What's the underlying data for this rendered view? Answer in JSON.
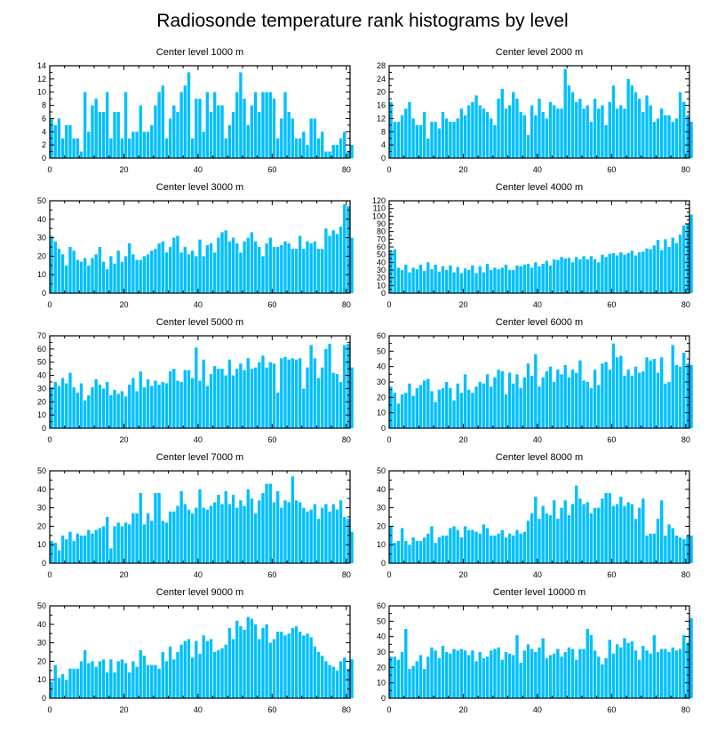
{
  "title": "Radiosonde temperature rank histograms by level",
  "colors": {
    "bar": "#00bfff",
    "bar_edge": "#ffffff",
    "axis": "#000000"
  },
  "chart_data": [
    {
      "type": "bar",
      "title": "Center level 1000 m",
      "xlim": [
        0,
        81
      ],
      "ylim": [
        0,
        14
      ],
      "xticks": [
        0,
        20,
        40,
        60,
        80
      ],
      "yticks": [
        0,
        2,
        4,
        6,
        8,
        10,
        12,
        14
      ],
      "values": [
        6,
        5,
        6,
        3,
        5,
        5,
        3,
        3,
        1,
        10,
        4,
        8,
        9,
        7,
        7,
        10,
        3,
        7,
        7,
        3,
        10,
        3,
        4,
        4,
        8,
        4,
        4,
        5,
        8,
        10,
        11,
        3,
        6,
        8,
        7,
        10,
        11,
        13,
        3,
        9,
        9,
        4,
        10,
        7,
        10,
        8,
        8,
        3,
        5,
        7,
        10,
        13,
        9,
        5,
        8,
        10,
        7,
        10,
        10,
        10,
        9,
        3,
        6,
        10,
        7,
        6,
        3,
        3,
        4,
        2,
        6,
        6,
        3,
        4,
        1,
        1,
        2,
        2,
        3,
        4,
        1,
        2
      ]
    },
    {
      "type": "bar",
      "title": "Center level 2000 m",
      "xlim": [
        0,
        81
      ],
      "ylim": [
        0,
        28
      ],
      "xticks": [
        0,
        20,
        40,
        60,
        80
      ],
      "yticks": [
        0,
        4,
        8,
        12,
        16,
        20,
        24,
        28
      ],
      "values": [
        17,
        11,
        11,
        13,
        15,
        17,
        12,
        10,
        10,
        14,
        6,
        11,
        11,
        9,
        14,
        12,
        11,
        11,
        12,
        15,
        13,
        16,
        17,
        19,
        16,
        15,
        14,
        12,
        10,
        18,
        21,
        15,
        16,
        20,
        18,
        14,
        13,
        7,
        16,
        13,
        18,
        14,
        12,
        17,
        16,
        15,
        15,
        27,
        22,
        20,
        17,
        18,
        15,
        16,
        11,
        18,
        15,
        16,
        10,
        17,
        22,
        15,
        16,
        15,
        24,
        22,
        20,
        18,
        14,
        19,
        16,
        11,
        12,
        15,
        13,
        13,
        11,
        12,
        20,
        17,
        13,
        11
      ]
    },
    {
      "type": "bar",
      "title": "Center level 3000 m",
      "xlim": [
        0,
        81
      ],
      "ylim": [
        0,
        50
      ],
      "xticks": [
        0,
        20,
        40,
        60,
        80
      ],
      "yticks": [
        0,
        10,
        20,
        30,
        40,
        50
      ],
      "values": [
        31,
        28,
        24,
        21,
        15,
        25,
        23,
        18,
        17,
        19,
        15,
        19,
        21,
        25,
        17,
        13,
        20,
        16,
        23,
        17,
        20,
        27,
        21,
        18,
        18,
        20,
        21,
        23,
        24,
        27,
        28,
        22,
        25,
        30,
        31,
        22,
        25,
        21,
        23,
        20,
        29,
        20,
        26,
        27,
        22,
        30,
        33,
        34,
        28,
        30,
        27,
        22,
        28,
        30,
        33,
        28,
        25,
        20,
        27,
        30,
        25,
        25,
        26,
        28,
        27,
        24,
        24,
        31,
        24,
        28,
        27,
        28,
        24,
        24,
        35,
        31,
        34,
        32,
        36,
        48,
        47,
        30
      ]
    },
    {
      "type": "bar",
      "title": "Center level 4000 m",
      "xlim": [
        0,
        81
      ],
      "ylim": [
        0,
        120
      ],
      "xticks": [
        0,
        20,
        40,
        60,
        80
      ],
      "yticks": [
        0,
        10,
        20,
        30,
        40,
        50,
        60,
        70,
        80,
        90,
        100,
        110,
        120
      ],
      "values": [
        55,
        57,
        33,
        30,
        37,
        27,
        33,
        31,
        37,
        29,
        40,
        31,
        37,
        28,
        35,
        30,
        36,
        27,
        34,
        26,
        32,
        30,
        36,
        26,
        35,
        27,
        38,
        30,
        33,
        31,
        33,
        37,
        30,
        30,
        36,
        35,
        37,
        38,
        33,
        40,
        35,
        38,
        42,
        36,
        44,
        43,
        47,
        45,
        46,
        40,
        47,
        44,
        48,
        44,
        48,
        44,
        40,
        50,
        47,
        51,
        52,
        49,
        53,
        50,
        52,
        55,
        49,
        53,
        54,
        58,
        57,
        62,
        69,
        56,
        70,
        60,
        72,
        65,
        76,
        88,
        90,
        102
      ]
    },
    {
      "type": "bar",
      "title": "Center level 5000 m",
      "xlim": [
        0,
        81
      ],
      "ylim": [
        0,
        70
      ],
      "xticks": [
        0,
        20,
        40,
        60,
        80
      ],
      "yticks": [
        0,
        10,
        20,
        30,
        40,
        50,
        60,
        70
      ],
      "values": [
        31,
        35,
        32,
        38,
        34,
        42,
        31,
        27,
        34,
        21,
        25,
        31,
        37,
        33,
        30,
        35,
        25,
        29,
        26,
        28,
        24,
        33,
        38,
        28,
        43,
        31,
        37,
        32,
        36,
        33,
        35,
        34,
        43,
        45,
        36,
        35,
        44,
        44,
        38,
        61,
        36,
        52,
        32,
        41,
        47,
        45,
        45,
        40,
        52,
        40,
        45,
        49,
        44,
        53,
        45,
        46,
        50,
        55,
        46,
        50,
        49,
        27,
        53,
        54,
        52,
        53,
        52,
        53,
        30,
        46,
        63,
        53,
        38,
        46,
        60,
        64,
        42,
        41,
        35,
        63,
        64,
        46
      ]
    },
    {
      "type": "bar",
      "title": "Center level 6000 m",
      "xlim": [
        0,
        81
      ],
      "ylim": [
        0,
        60
      ],
      "xticks": [
        0,
        20,
        40,
        60,
        80
      ],
      "yticks": [
        0,
        10,
        20,
        30,
        40,
        50,
        60
      ],
      "values": [
        27,
        23,
        16,
        22,
        23,
        29,
        21,
        26,
        28,
        31,
        32,
        24,
        17,
        25,
        26,
        30,
        26,
        18,
        29,
        23,
        35,
        25,
        23,
        27,
        30,
        29,
        35,
        27,
        33,
        38,
        37,
        22,
        36,
        29,
        35,
        26,
        33,
        42,
        34,
        48,
        27,
        33,
        37,
        40,
        30,
        38,
        35,
        41,
        33,
        38,
        36,
        44,
        31,
        30,
        26,
        38,
        28,
        42,
        43,
        38,
        55,
        46,
        47,
        34,
        38,
        34,
        40,
        36,
        37,
        46,
        44,
        45,
        36,
        46,
        29,
        30,
        54,
        41,
        40,
        49,
        42,
        41
      ]
    },
    {
      "type": "bar",
      "title": "Center level 7000 m",
      "xlim": [
        0,
        81
      ],
      "ylim": [
        0,
        50
      ],
      "xticks": [
        0,
        20,
        40,
        60,
        80
      ],
      "yticks": [
        0,
        10,
        20,
        30,
        40,
        50
      ],
      "values": [
        12,
        11,
        7,
        15,
        13,
        17,
        12,
        16,
        15,
        15,
        18,
        16,
        18,
        19,
        20,
        25,
        8,
        20,
        22,
        20,
        22,
        21,
        27,
        27,
        38,
        21,
        27,
        23,
        38,
        38,
        23,
        22,
        28,
        28,
        31,
        39,
        32,
        29,
        27,
        30,
        40,
        30,
        29,
        31,
        33,
        37,
        32,
        39,
        32,
        37,
        30,
        34,
        31,
        40,
        35,
        27,
        34,
        38,
        43,
        43,
        33,
        39,
        30,
        34,
        33,
        47,
        34,
        33,
        30,
        28,
        29,
        32,
        24,
        30,
        32,
        28,
        32,
        29,
        34,
        25,
        24,
        17
      ]
    },
    {
      "type": "bar",
      "title": "Center level 8000 m",
      "xlim": [
        0,
        81
      ],
      "ylim": [
        0,
        50
      ],
      "xticks": [
        0,
        20,
        40,
        60,
        80
      ],
      "yticks": [
        0,
        10,
        20,
        30,
        40,
        50
      ],
      "values": [
        20,
        11,
        12,
        19,
        12,
        10,
        14,
        12,
        12,
        14,
        16,
        20,
        11,
        14,
        15,
        15,
        19,
        20,
        18,
        14,
        20,
        18,
        18,
        17,
        16,
        21,
        19,
        15,
        15,
        16,
        18,
        14,
        16,
        15,
        18,
        16,
        17,
        23,
        27,
        36,
        24,
        31,
        27,
        26,
        34,
        24,
        30,
        34,
        26,
        32,
        42,
        35,
        32,
        33,
        27,
        30,
        30,
        35,
        38,
        38,
        31,
        32,
        36,
        31,
        33,
        32,
        24,
        30,
        35,
        15,
        16,
        16,
        24,
        34,
        15,
        21,
        19,
        15,
        14,
        13,
        15,
        15
      ]
    },
    {
      "type": "bar",
      "title": "Center level 9000 m",
      "xlim": [
        0,
        81
      ],
      "ylim": [
        0,
        50
      ],
      "xticks": [
        0,
        20,
        40,
        60,
        80
      ],
      "yticks": [
        0,
        10,
        20,
        30,
        40,
        50
      ],
      "values": [
        9,
        18,
        11,
        13,
        10,
        16,
        16,
        16,
        20,
        26,
        19,
        20,
        17,
        20,
        21,
        14,
        21,
        14,
        20,
        21,
        19,
        14,
        20,
        17,
        26,
        23,
        18,
        18,
        18,
        16,
        25,
        20,
        28,
        21,
        25,
        29,
        31,
        32,
        22,
        31,
        24,
        34,
        31,
        32,
        25,
        26,
        27,
        29,
        38,
        32,
        42,
        39,
        37,
        44,
        43,
        40,
        32,
        38,
        40,
        30,
        32,
        36,
        36,
        34,
        35,
        38,
        39,
        36,
        34,
        35,
        33,
        28,
        25,
        23,
        20,
        18,
        17,
        15,
        20,
        22,
        16,
        21
      ]
    },
    {
      "type": "bar",
      "title": "Center level 10000 m",
      "xlim": [
        0,
        81
      ],
      "ylim": [
        0,
        60
      ],
      "xticks": [
        0,
        20,
        40,
        60,
        80
      ],
      "yticks": [
        0,
        10,
        20,
        30,
        40,
        50,
        60
      ],
      "values": [
        27,
        27,
        25,
        30,
        45,
        19,
        21,
        24,
        28,
        19,
        27,
        33,
        31,
        26,
        34,
        30,
        29,
        32,
        31,
        32,
        31,
        28,
        31,
        24,
        30,
        26,
        27,
        31,
        32,
        33,
        25,
        30,
        29,
        28,
        41,
        23,
        31,
        35,
        32,
        30,
        33,
        39,
        26,
        28,
        29,
        32,
        27,
        30,
        33,
        32,
        25,
        32,
        32,
        45,
        41,
        31,
        27,
        22,
        26,
        38,
        29,
        35,
        33,
        39,
        36,
        37,
        31,
        25,
        34,
        31,
        29,
        41,
        30,
        32,
        32,
        30,
        33,
        31,
        32,
        41,
        36,
        52
      ]
    }
  ]
}
